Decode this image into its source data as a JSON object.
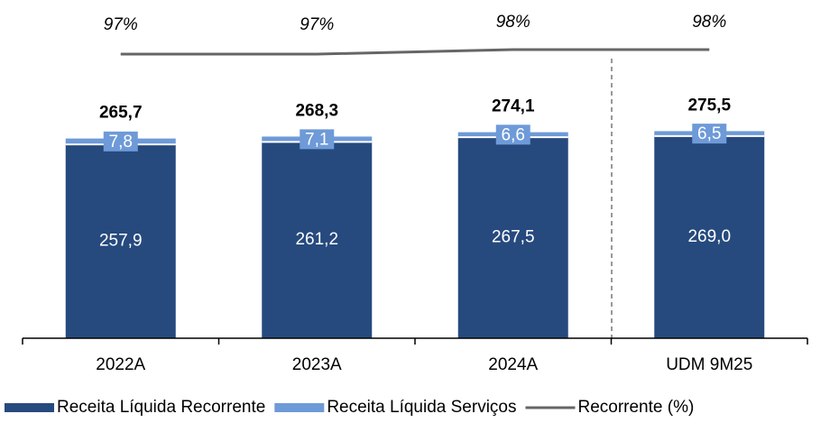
{
  "chart_data": {
    "type": "stacked_bar_line",
    "categories": [
      "2022A",
      "2023A",
      "2024A",
      "UDM 9M25"
    ],
    "series": [
      {
        "name": "Receita Líquida Recorrente",
        "color": "#264a7e",
        "values": [
          257.9,
          261.2,
          267.5,
          269.0
        ],
        "value_labels": [
          "257,9",
          "261,2",
          "267,5",
          "269,0"
        ]
      },
      {
        "name": "Receita Líquida Serviços",
        "color": "#6e9ad8",
        "values": [
          7.8,
          7.1,
          6.6,
          6.5
        ],
        "value_labels": [
          "7,8",
          "7,1",
          "6,6",
          "6,5"
        ]
      },
      {
        "name": "Recorrente (%)",
        "color": "#666666",
        "type": "line",
        "axis": "y2",
        "values": [
          97,
          97,
          98,
          98
        ],
        "value_labels": [
          "97%",
          "97%",
          "98%",
          "98%"
        ]
      }
    ],
    "totals": [
      265.7,
      268.3,
      274.1,
      275.5
    ],
    "total_labels": [
      "265,7",
      "268,3",
      "274,1",
      "275,5"
    ],
    "ylim": [
      0,
      396
    ],
    "y2lim": [
      34,
      100
    ]
  }
}
